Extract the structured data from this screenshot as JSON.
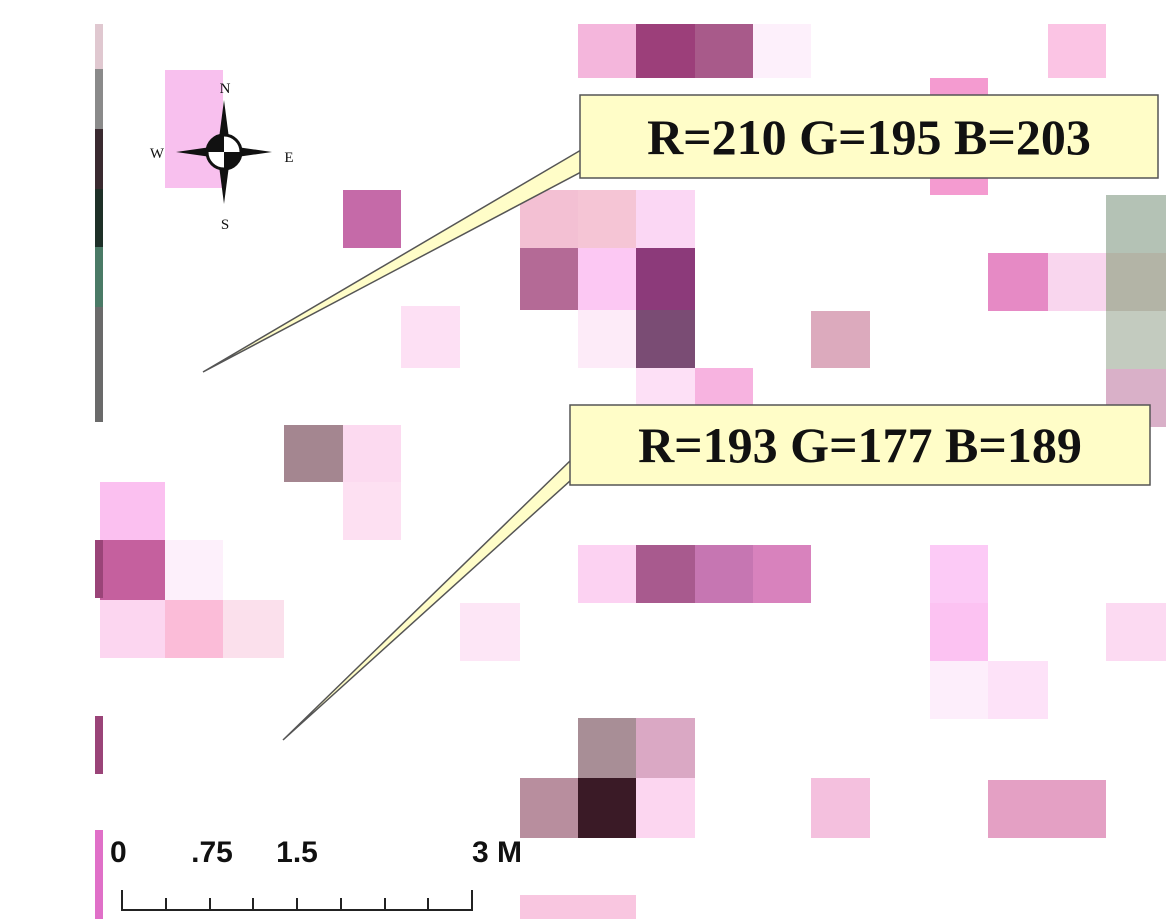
{
  "compass": {
    "north": "N",
    "south": "S",
    "east": "E",
    "west": "W"
  },
  "callouts": [
    {
      "label": "R=210 G=195 B=203"
    },
    {
      "label": "R=193 G=177 B=189"
    }
  ],
  "scale_bar": {
    "labels": [
      "0",
      ".75",
      "1.5",
      "3 M"
    ]
  }
}
